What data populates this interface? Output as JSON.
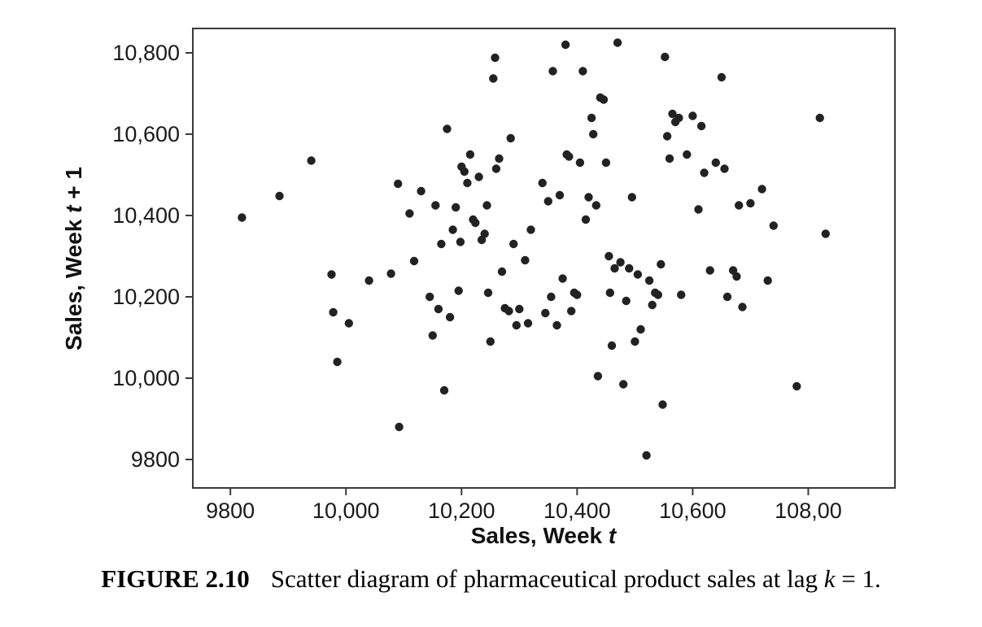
{
  "figure": {
    "caption_label": "FIGURE 2.10",
    "caption_text": "Scatter diagram of pharmaceutical product sales at lag ",
    "caption_var": "k",
    "caption_end": " = 1."
  },
  "axes": {
    "xlabel_prefix": "Sales, Week ",
    "xlabel_var": "t",
    "ylabel_prefix": "Sales, Week ",
    "ylabel_var": "t",
    "ylabel_suffix": " + 1"
  },
  "chart_data": {
    "type": "scatter",
    "title": "",
    "xlabel": "Sales, Week t",
    "ylabel": "Sales, Week t + 1",
    "xlim": [
      9735,
      10950
    ],
    "ylim": [
      9730,
      10860
    ],
    "grid": false,
    "legend": "none",
    "dot_color": "#222222",
    "frame_color": "#3a3a3a",
    "x_ticks": [
      9800,
      10000,
      10200,
      10400,
      10600,
      10800
    ],
    "x_tick_labels": [
      "9800",
      "10,000",
      "10,200",
      "10,400",
      "10,600",
      "108,00"
    ],
    "y_ticks": [
      9800,
      10000,
      10200,
      10400,
      10600,
      10800
    ],
    "y_tick_labels": [
      "9800",
      "10,000",
      "10,200",
      "10,400",
      "10,600",
      "10,800"
    ],
    "points": [
      [
        9820,
        10395
      ],
      [
        9885,
        10448
      ],
      [
        9940,
        10535
      ],
      [
        9975,
        10255
      ],
      [
        9978,
        10162
      ],
      [
        9985,
        10040
      ],
      [
        10005,
        10135
      ],
      [
        10040,
        10240
      ],
      [
        10078,
        10257
      ],
      [
        10090,
        10478
      ],
      [
        10092,
        9880
      ],
      [
        10110,
        10405
      ],
      [
        10118,
        10288
      ],
      [
        10130,
        10460
      ],
      [
        10145,
        10200
      ],
      [
        10150,
        10105
      ],
      [
        10155,
        10425
      ],
      [
        10160,
        10170
      ],
      [
        10165,
        10330
      ],
      [
        10170,
        9970
      ],
      [
        10175,
        10613
      ],
      [
        10180,
        10150
      ],
      [
        10185,
        10365
      ],
      [
        10190,
        10420
      ],
      [
        10195,
        10215
      ],
      [
        10198,
        10335
      ],
      [
        10200,
        10520
      ],
      [
        10205,
        10508
      ],
      [
        10210,
        10480
      ],
      [
        10215,
        10550
      ],
      [
        10220,
        10390
      ],
      [
        10224,
        10382
      ],
      [
        10230,
        10495
      ],
      [
        10235,
        10340
      ],
      [
        10240,
        10355
      ],
      [
        10244,
        10425
      ],
      [
        10246,
        10210
      ],
      [
        10250,
        10090
      ],
      [
        10255,
        10737
      ],
      [
        10258,
        10788
      ],
      [
        10260,
        10515
      ],
      [
        10265,
        10540
      ],
      [
        10270,
        10262
      ],
      [
        10275,
        10172
      ],
      [
        10282,
        10165
      ],
      [
        10285,
        10590
      ],
      [
        10290,
        10330
      ],
      [
        10295,
        10130
      ],
      [
        10300,
        10170
      ],
      [
        10310,
        10290
      ],
      [
        10315,
        10135
      ],
      [
        10320,
        10365
      ],
      [
        10340,
        10480
      ],
      [
        10345,
        10160
      ],
      [
        10350,
        10435
      ],
      [
        10355,
        10200
      ],
      [
        10358,
        10755
      ],
      [
        10365,
        10130
      ],
      [
        10370,
        10450
      ],
      [
        10375,
        10245
      ],
      [
        10380,
        10820
      ],
      [
        10382,
        10550
      ],
      [
        10386,
        10545
      ],
      [
        10390,
        10165
      ],
      [
        10395,
        10210
      ],
      [
        10400,
        10205
      ],
      [
        10405,
        10530
      ],
      [
        10410,
        10755
      ],
      [
        10415,
        10390
      ],
      [
        10420,
        10445
      ],
      [
        10425,
        10640
      ],
      [
        10428,
        10600
      ],
      [
        10433,
        10425
      ],
      [
        10436,
        10005
      ],
      [
        10440,
        10690
      ],
      [
        10446,
        10685
      ],
      [
        10450,
        10530
      ],
      [
        10455,
        10300
      ],
      [
        10457,
        10210
      ],
      [
        10460,
        10080
      ],
      [
        10465,
        10270
      ],
      [
        10470,
        10825
      ],
      [
        10475,
        10285
      ],
      [
        10480,
        9985
      ],
      [
        10485,
        10190
      ],
      [
        10490,
        10270
      ],
      [
        10495,
        10445
      ],
      [
        10500,
        10090
      ],
      [
        10505,
        10255
      ],
      [
        10510,
        10120
      ],
      [
        10520,
        9810
      ],
      [
        10525,
        10240
      ],
      [
        10530,
        10180
      ],
      [
        10535,
        10210
      ],
      [
        10540,
        10205
      ],
      [
        10545,
        10280
      ],
      [
        10548,
        9935
      ],
      [
        10552,
        10790
      ],
      [
        10556,
        10595
      ],
      [
        10560,
        10540
      ],
      [
        10565,
        10650
      ],
      [
        10570,
        10630
      ],
      [
        10576,
        10640
      ],
      [
        10580,
        10205
      ],
      [
        10590,
        10550
      ],
      [
        10600,
        10645
      ],
      [
        10610,
        10415
      ],
      [
        10615,
        10620
      ],
      [
        10620,
        10505
      ],
      [
        10630,
        10265
      ],
      [
        10640,
        10530
      ],
      [
        10650,
        10740
      ],
      [
        10655,
        10515
      ],
      [
        10660,
        10200
      ],
      [
        10670,
        10265
      ],
      [
        10676,
        10250
      ],
      [
        10680,
        10425
      ],
      [
        10686,
        10175
      ],
      [
        10700,
        10430
      ],
      [
        10720,
        10465
      ],
      [
        10730,
        10240
      ],
      [
        10740,
        10375
      ],
      [
        10780,
        9980
      ],
      [
        10820,
        10640
      ],
      [
        10830,
        10355
      ]
    ]
  }
}
